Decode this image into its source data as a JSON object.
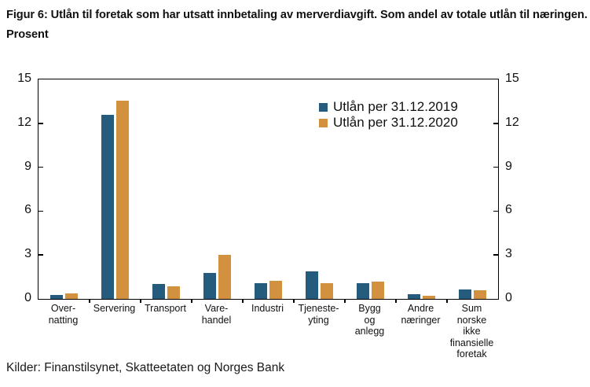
{
  "figure": {
    "title": "Figur 6: Utlån til foretak som har utsatt innbetaling av merverdiavgift. Som andel av totale utlån til næringen. Prosent",
    "source": "Kilder: Finanstilsynet, Skatteetaten og Norges Bank"
  },
  "colors": {
    "series_2019": "#255C7D",
    "series_2020": "#D1913F",
    "axis": "#000000",
    "background": "#FFFFFF"
  },
  "chart_data": {
    "type": "bar",
    "title": "Figur 6: Utlån til foretak som har utsatt innbetaling av merverdiavgift. Som andel av totale utlån til næringen. Prosent",
    "xlabel": "",
    "ylabel": "Prosent",
    "ylim": [
      0,
      15
    ],
    "yticks": [
      0,
      3,
      6,
      9,
      12,
      15
    ],
    "grid": false,
    "legend_position": "top-right",
    "categories": [
      "Overnatting",
      "Servering",
      "Transport",
      "Varehandel",
      "Industri",
      "Tjenesteyting",
      "Bygg og anlegg",
      "Andre næringer",
      "Sum norske ikke finansielle foretak"
    ],
    "category_label_lines": [
      [
        "Over-",
        "natting"
      ],
      [
        "Servering"
      ],
      [
        "Transport"
      ],
      [
        "Vare-",
        "handel"
      ],
      [
        "Industri"
      ],
      [
        "Tjeneste-",
        "yting"
      ],
      [
        "Bygg",
        "og",
        "anlegg"
      ],
      [
        "Andre",
        "næringer"
      ],
      [
        "Sum",
        "norske",
        "ikke",
        "finansielle",
        "foretak"
      ]
    ],
    "series": [
      {
        "name": "Utlån per 31.12.2019",
        "color": "#255C7D",
        "values": [
          0.25,
          12.6,
          1.0,
          1.75,
          1.05,
          1.9,
          1.05,
          0.3,
          0.65
        ]
      },
      {
        "name": "Utlån per 31.12.2020",
        "color": "#D1913F",
        "values": [
          0.4,
          13.55,
          0.85,
          3.0,
          1.25,
          1.1,
          1.2,
          0.2,
          0.6
        ]
      }
    ]
  }
}
